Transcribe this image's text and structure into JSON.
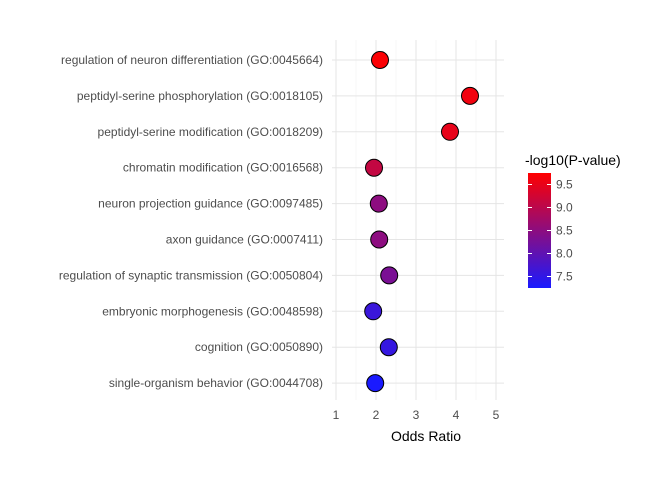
{
  "chart_data": {
    "type": "scatter",
    "title": "",
    "xlabel": "Odds Ratio",
    "ylabel": "",
    "xlim": [
      0.9,
      5.2
    ],
    "x_ticks": [
      1,
      2,
      3,
      4,
      5
    ],
    "grid": true,
    "legend_placement": "right",
    "color_scale": {
      "title": "-log10(P-value)",
      "min": 7.25,
      "max": 9.75,
      "low_color": "#1a1aff",
      "high_color": "#ff0000",
      "ticks": [
        7.5,
        8.0,
        8.5,
        9.0,
        9.5
      ],
      "tick_labels": [
        "7.5",
        "8.0",
        "8.5",
        "9.0",
        "9.5"
      ]
    },
    "points": [
      {
        "term": "regulation of neuron differentiation (GO:0045664)",
        "odds_ratio": 2.1,
        "neg_log10_p": 9.7
      },
      {
        "term": "peptidyl-serine phosphorylation (GO:0018105)",
        "odds_ratio": 4.35,
        "neg_log10_p": 9.6
      },
      {
        "term": "peptidyl-serine modification (GO:0018209)",
        "odds_ratio": 3.85,
        "neg_log10_p": 9.5
      },
      {
        "term": "chromatin modification (GO:0016568)",
        "odds_ratio": 1.95,
        "neg_log10_p": 9.1
      },
      {
        "term": "neuron projection guidance (GO:0097485)",
        "odds_ratio": 2.07,
        "neg_log10_p": 8.5
      },
      {
        "term": "axon guidance (GO:0007411)",
        "odds_ratio": 2.08,
        "neg_log10_p": 8.5
      },
      {
        "term": "regulation of synaptic transmission (GO:0050804)",
        "odds_ratio": 2.33,
        "neg_log10_p": 8.3
      },
      {
        "term": "embryonic morphogenesis (GO:0048598)",
        "odds_ratio": 1.93,
        "neg_log10_p": 7.6
      },
      {
        "term": "cognition (GO:0050890)",
        "odds_ratio": 2.32,
        "neg_log10_p": 7.55
      },
      {
        "term": "single-organism behavior (GO:0044708)",
        "odds_ratio": 1.98,
        "neg_log10_p": 7.25
      }
    ]
  }
}
